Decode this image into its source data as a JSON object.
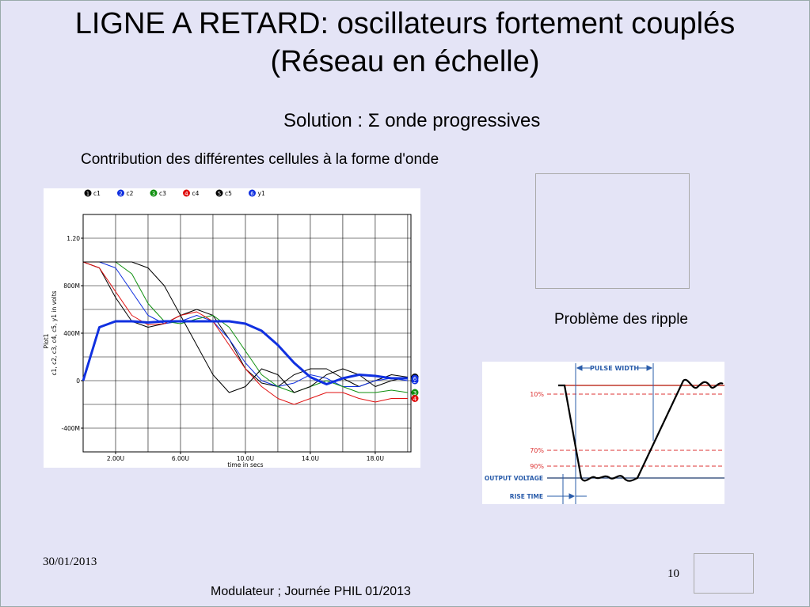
{
  "title": {
    "line1": "LIGNE A RETARD: oscillateurs fortement couplés",
    "line2": "(Réseau en échelle)"
  },
  "subtitle": "Solution : Σ onde progressives",
  "caption": "Contribution des différentes cellules à la forme d'onde",
  "ripple_caption": "Problème des ripple",
  "footer": {
    "date": "30/01/2013",
    "page": "10",
    "text": "Modulateur ; Journée PHIL 01/2013"
  },
  "plot": {
    "type": "line",
    "title": "Plot1",
    "y_label": "c1, c2, c3, c4, c5, y1 in volts",
    "x_label": "time in secs",
    "x": [
      0,
      1,
      2,
      3,
      4,
      5,
      6,
      7,
      8,
      9,
      10,
      11,
      12,
      13,
      14,
      15,
      16,
      17,
      18,
      19,
      20
    ],
    "xlim": [
      0,
      20.2
    ],
    "ylim": [
      -0.6,
      1.4
    ],
    "xticks": [
      {
        "value": 2,
        "label": "2.00U"
      },
      {
        "value": 6,
        "label": "6.00U"
      },
      {
        "value": 10,
        "label": "10.0U"
      },
      {
        "value": 14,
        "label": "14.0U"
      },
      {
        "value": 18,
        "label": "18.0U"
      }
    ],
    "yticks": [
      {
        "value": 1.2,
        "label": "1.20"
      },
      {
        "value": 0.8,
        "label": "800M"
      },
      {
        "value": 0.4,
        "label": "400M"
      },
      0,
      {
        "value": -0.4,
        "label": "-400M"
      }
    ],
    "xgrid": [
      0,
      2,
      4,
      6,
      8,
      10,
      12,
      14,
      16,
      18,
      20
    ],
    "ygrid": [
      -0.6,
      -0.4,
      -0.2,
      0,
      0.2,
      0.4,
      0.6,
      0.8,
      1,
      1.2,
      1.4
    ],
    "grid": true,
    "series": [
      {
        "name": "c1",
        "marker": "1",
        "color": "#000000",
        "width": 1,
        "values": [
          1,
          0.95,
          0.7,
          0.5,
          0.45,
          0.48,
          0.55,
          0.6,
          0.55,
          0.35,
          0.1,
          -0.02,
          -0.05,
          0.05,
          0.1,
          0.1,
          0.02,
          -0.05,
          0,
          0.05,
          0.03
        ]
      },
      {
        "name": "c2",
        "marker": "2",
        "color": "#1030e0",
        "width": 1,
        "values": [
          1,
          1,
          0.95,
          0.75,
          0.55,
          0.48,
          0.5,
          0.55,
          0.5,
          0.35,
          0.15,
          0,
          -0.05,
          -0.02,
          0.05,
          0.02,
          -0.05,
          -0.05,
          0,
          0.02,
          0
        ]
      },
      {
        "name": "c3",
        "marker": "3",
        "color": "#109010",
        "width": 1,
        "values": [
          1,
          1,
          1,
          0.9,
          0.65,
          0.5,
          0.48,
          0.52,
          0.55,
          0.45,
          0.25,
          0.05,
          -0.05,
          -0.1,
          -0.05,
          0,
          -0.05,
          -0.1,
          -0.1,
          -0.08,
          -0.1
        ]
      },
      {
        "name": "c4",
        "marker": "4",
        "color": "#e01010",
        "width": 1,
        "values": [
          1,
          0.95,
          0.75,
          0.55,
          0.47,
          0.48,
          0.55,
          0.58,
          0.5,
          0.3,
          0.1,
          -0.05,
          -0.15,
          -0.2,
          -0.15,
          -0.1,
          -0.1,
          -0.15,
          -0.18,
          -0.15,
          -0.15
        ]
      },
      {
        "name": "c5",
        "marker": "5",
        "color": "#000000",
        "width": 1,
        "values": [
          1,
          1,
          1,
          1,
          0.95,
          0.8,
          0.55,
          0.3,
          0.05,
          -0.1,
          -0.05,
          0.1,
          0.05,
          -0.1,
          -0.05,
          0.05,
          0.1,
          0.05,
          -0.05,
          0,
          0.03
        ]
      },
      {
        "name": "y1",
        "marker": "6",
        "color": "#1030e0",
        "width": 3,
        "values": [
          0,
          0.45,
          0.5,
          0.5,
          0.49,
          0.5,
          0.5,
          0.5,
          0.5,
          0.5,
          0.48,
          0.42,
          0.3,
          0.15,
          0.03,
          -0.03,
          0.02,
          0.05,
          0.04,
          0.02,
          0.02
        ]
      }
    ]
  },
  "rise_diagram": {
    "pulse_width": "PULSE WIDTH",
    "levels": [
      "10%",
      "70%",
      "90%"
    ],
    "output_voltage": "OUTPUT VOLTAGE",
    "rise_time": "RISE TIME"
  }
}
